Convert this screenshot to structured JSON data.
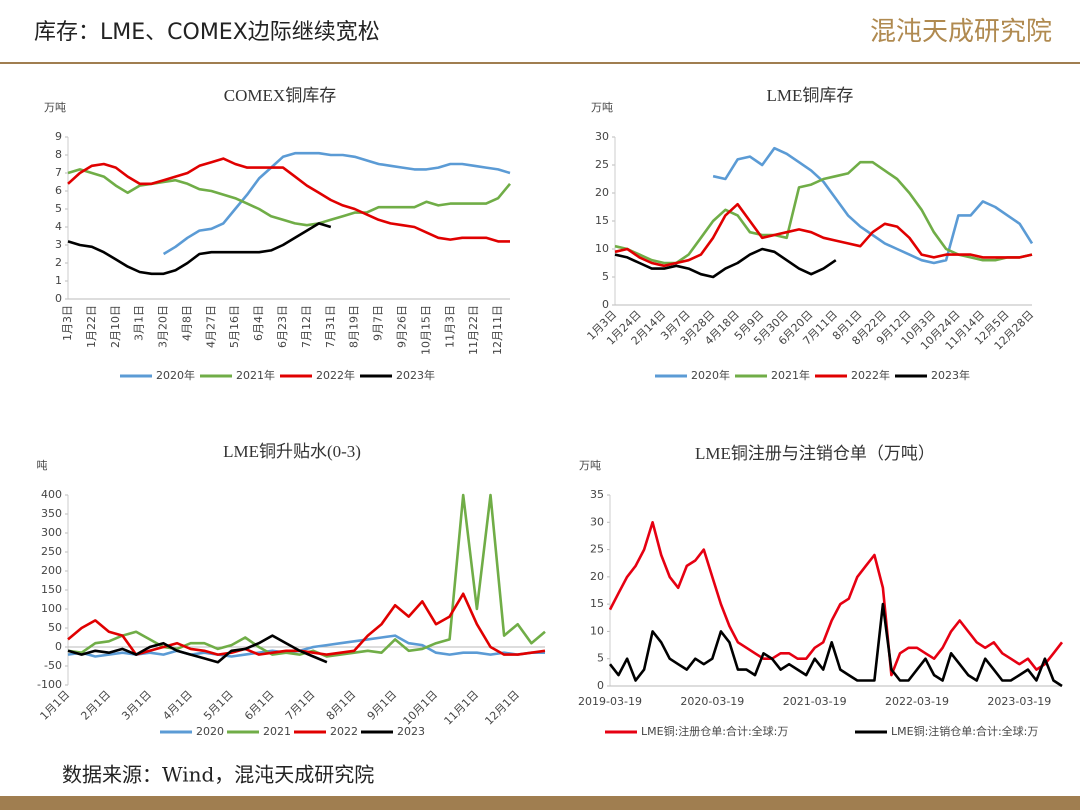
{
  "header": {
    "title": "库存：LME、COMEX边际继续宽松",
    "logo": "混沌天成研究院"
  },
  "footer": {
    "source": "数据来源：Wind，混沌天成研究院"
  },
  "chart_data": [
    {
      "type": "line",
      "title": "COMEX铜库存",
      "y_unit": "万吨",
      "categories": [
        "1月3日",
        null,
        "1月22日",
        null,
        "2月10日",
        null,
        "3月1日",
        null,
        "3月20日",
        null,
        "4月8日",
        null,
        "4月27日",
        null,
        "5月16日",
        null,
        "6月4日",
        null,
        "6月23日",
        null,
        "7月12日",
        null,
        "7月31日",
        null,
        "8月19日",
        null,
        "9月7日",
        null,
        "9月26日",
        null,
        "10月15日",
        null,
        "11月3日",
        null,
        "11月22日",
        null,
        "12月11日",
        null
      ],
      "ylim": [
        0,
        9
      ],
      "yticks": [
        0,
        1,
        2,
        3,
        4,
        5,
        6,
        7,
        8,
        9
      ],
      "series": [
        {
          "name": "2020年",
          "color": "#5b9bd5",
          "values": [
            null,
            null,
            null,
            null,
            null,
            null,
            null,
            null,
            2.5,
            2.9,
            3.4,
            3.8,
            3.9,
            4.2,
            5.0,
            5.8,
            6.7,
            7.3,
            7.9,
            8.1,
            8.1,
            8.1,
            8.0,
            8.0,
            7.9,
            7.7,
            7.5,
            7.4,
            7.3,
            7.2,
            7.2,
            7.3,
            7.5,
            7.5,
            7.4,
            7.3,
            7.2,
            7.0
          ]
        },
        {
          "name": "2021年",
          "color": "#70ad47",
          "values": [
            7.0,
            7.2,
            7.0,
            6.8,
            6.3,
            5.9,
            6.3,
            6.4,
            6.5,
            6.6,
            6.4,
            6.1,
            6.0,
            5.8,
            5.6,
            5.3,
            5.0,
            4.6,
            4.4,
            4.2,
            4.1,
            4.2,
            4.4,
            4.6,
            4.8,
            4.8,
            5.1,
            5.1,
            5.1,
            5.1,
            5.4,
            5.2,
            5.3,
            5.3,
            5.3,
            5.3,
            5.6,
            6.4
          ]
        },
        {
          "name": "2022年",
          "color": "#e00000",
          "values": [
            6.4,
            7.0,
            7.4,
            7.5,
            7.3,
            6.8,
            6.4,
            6.4,
            6.6,
            6.8,
            7.0,
            7.4,
            7.6,
            7.8,
            7.5,
            7.3,
            7.3,
            7.3,
            7.3,
            6.8,
            6.3,
            5.9,
            5.5,
            5.2,
            5.0,
            4.7,
            4.4,
            4.2,
            4.1,
            4.0,
            3.7,
            3.4,
            3.3,
            3.4,
            3.4,
            3.4,
            3.2,
            3.2
          ]
        },
        {
          "name": "2023年",
          "color": "#000000",
          "values": [
            3.2,
            3.0,
            2.9,
            2.6,
            2.2,
            1.8,
            1.5,
            1.4,
            1.4,
            1.6,
            2.0,
            2.5,
            2.6,
            2.6,
            2.6,
            2.6,
            2.6,
            2.7,
            3.0,
            3.4,
            3.8,
            4.2,
            4.0,
            null,
            null,
            null,
            null,
            null,
            null,
            null,
            null,
            null,
            null,
            null,
            null,
            null,
            null,
            null
          ]
        }
      ]
    },
    {
      "type": "line",
      "title": "LME铜库存",
      "y_unit": "万吨",
      "categories": [
        "1月3日",
        null,
        "1月24日",
        null,
        "2月14日",
        null,
        "3月7日",
        null,
        "3月28日",
        null,
        "4月18日",
        null,
        "5月9日",
        null,
        "5月30日",
        null,
        "6月20日",
        null,
        "7月11日",
        null,
        "8月1日",
        null,
        "8月22日",
        null,
        "9月12日",
        null,
        "10月3日",
        null,
        "10月24日",
        null,
        "11月14日",
        null,
        "12月5日",
        null,
        "12月28日"
      ],
      "ylim": [
        0,
        30
      ],
      "yticks": [
        0,
        5,
        10,
        15,
        20,
        25,
        30
      ],
      "series": [
        {
          "name": "2020年",
          "color": "#5b9bd5",
          "values": [
            null,
            null,
            null,
            null,
            null,
            null,
            null,
            null,
            23,
            22.5,
            26,
            26.5,
            25,
            28,
            27,
            25.5,
            24,
            22,
            19,
            16,
            14,
            12.5,
            11,
            10,
            9,
            8,
            7.5,
            8,
            16,
            16,
            18.5,
            17.5,
            16,
            14.5,
            11
          ]
        },
        {
          "name": "2021年",
          "color": "#70ad47",
          "values": [
            10.5,
            10,
            9,
            8,
            7.5,
            7.5,
            9,
            12,
            15,
            17,
            16,
            13,
            12.5,
            12.5,
            12,
            21,
            21.5,
            22.5,
            23,
            23.5,
            25.5,
            25.5,
            24,
            22.5,
            20,
            17,
            13,
            10,
            9,
            8.5,
            8,
            8,
            8.5,
            8.5,
            9
          ]
        },
        {
          "name": "2022年",
          "color": "#e00000",
          "values": [
            9.5,
            10,
            8.5,
            7.5,
            7,
            7.5,
            8,
            9,
            12,
            16,
            18,
            15,
            12,
            12.5,
            13,
            13.5,
            13,
            12,
            11.5,
            11,
            10.5,
            13,
            14.5,
            14,
            12,
            9,
            8.5,
            9,
            9,
            9,
            8.5,
            8.5,
            8.5,
            8.5,
            9
          ]
        },
        {
          "name": "2023年",
          "color": "#000000",
          "values": [
            9,
            8.5,
            7.5,
            6.5,
            6.5,
            7,
            6.5,
            5.5,
            5,
            6.5,
            7.5,
            9,
            10,
            9.5,
            8,
            6.5,
            5.5,
            6.5,
            8,
            null,
            null,
            null,
            null,
            null,
            null,
            null,
            null,
            null,
            null,
            null,
            null,
            null,
            null,
            null,
            null
          ]
        }
      ]
    },
    {
      "type": "line",
      "title": "LME铜升贴水(0-3)",
      "y_unit": "吨",
      "categories": [
        "1月1日",
        null,
        null,
        "2月1日",
        null,
        null,
        "3月1日",
        null,
        null,
        "4月1日",
        null,
        null,
        "5月1日",
        null,
        null,
        "6月1日",
        null,
        null,
        "7月1日",
        null,
        null,
        "8月1日",
        null,
        null,
        "9月1日",
        null,
        null,
        "10月1日",
        null,
        null,
        "11月1日",
        null,
        null,
        "12月1日",
        null,
        null
      ],
      "ylim": [
        -100,
        400
      ],
      "yticks": [
        -100,
        -50,
        0,
        50,
        100,
        150,
        200,
        250,
        300,
        350,
        400
      ],
      "series": [
        {
          "name": "2020",
          "color": "#5b9bd5",
          "values": [
            -20,
            -15,
            -25,
            -20,
            -15,
            -20,
            -15,
            -20,
            -10,
            -20,
            -15,
            -20,
            -25,
            -20,
            -15,
            -10,
            -15,
            -10,
            0,
            5,
            10,
            15,
            20,
            25,
            30,
            10,
            5,
            -15,
            -20,
            -15,
            -15,
            -20,
            -15,
            -20,
            -15,
            -15
          ]
        },
        {
          "name": "2021",
          "color": "#70ad47",
          "values": [
            -10,
            -15,
            10,
            15,
            30,
            40,
            20,
            0,
            -5,
            10,
            10,
            -5,
            5,
            25,
            0,
            -20,
            -15,
            -20,
            -10,
            -25,
            -20,
            -15,
            -10,
            -15,
            20,
            -10,
            -5,
            10,
            20,
            400,
            100,
            400,
            30,
            60,
            10,
            40
          ]
        },
        {
          "name": "2022",
          "color": "#e00000",
          "values": [
            20,
            50,
            70,
            40,
            30,
            -20,
            -10,
            0,
            10,
            -5,
            -10,
            -20,
            -15,
            -5,
            -20,
            -15,
            -10,
            -10,
            -15,
            -20,
            -15,
            -10,
            30,
            60,
            110,
            80,
            120,
            60,
            80,
            140,
            60,
            0,
            -20,
            -20,
            -15,
            -10
          ]
        },
        {
          "name": "2023",
          "color": "#000000",
          "values": [
            -10,
            -20,
            -10,
            -15,
            -5,
            -20,
            0,
            10,
            -10,
            -20,
            -30,
            -40,
            -10,
            -5,
            10,
            30,
            10,
            -10,
            -25,
            -40,
            null,
            null,
            null,
            null,
            null,
            null,
            null,
            null,
            null,
            null,
            null,
            null,
            null,
            null,
            null,
            null
          ]
        }
      ]
    },
    {
      "type": "line",
      "title": "LME铜注册与注销仓单（万吨）",
      "y_unit": "万吨",
      "categories": [
        "2019-03-19",
        null,
        null,
        null,
        null,
        null,
        null,
        null,
        null,
        null,
        null,
        null,
        "2020-03-19",
        null,
        null,
        null,
        null,
        null,
        null,
        null,
        null,
        null,
        null,
        null,
        "2021-03-19",
        null,
        null,
        null,
        null,
        null,
        null,
        null,
        null,
        null,
        null,
        null,
        "2022-03-19",
        null,
        null,
        null,
        null,
        null,
        null,
        null,
        null,
        null,
        null,
        null,
        "2023-03-19",
        null,
        null,
        null,
        null,
        null
      ],
      "ylim": [
        0,
        35
      ],
      "yticks": [
        0,
        5,
        10,
        15,
        20,
        25,
        30,
        35
      ],
      "series": [
        {
          "name": "LME铜:注册仓单:合计:全球:万",
          "color": "#e60012",
          "values": [
            14,
            17,
            20,
            22,
            25,
            30,
            24,
            20,
            18,
            22,
            23,
            25,
            20,
            15,
            11,
            8,
            7,
            6,
            5,
            5,
            6,
            6,
            5,
            5,
            7,
            8,
            12,
            15,
            16,
            20,
            22,
            24,
            18,
            2,
            6,
            7,
            7,
            6,
            5,
            7,
            10,
            12,
            10,
            8,
            7,
            8,
            6,
            5,
            4,
            5,
            3,
            4,
            6,
            8
          ]
        },
        {
          "name": "LME铜:注销仓单:合计:全球:万",
          "color": "#000000",
          "values": [
            4,
            2,
            5,
            1,
            3,
            10,
            8,
            5,
            4,
            3,
            5,
            4,
            5,
            10,
            8,
            3,
            3,
            2,
            6,
            5,
            3,
            4,
            3,
            2,
            5,
            3,
            8,
            3,
            2,
            1,
            1,
            1,
            15,
            3,
            1,
            1,
            3,
            5,
            2,
            1,
            6,
            4,
            2,
            1,
            5,
            3,
            1,
            1,
            2,
            3,
            1,
            5,
            1,
            0
          ]
        }
      ]
    }
  ]
}
